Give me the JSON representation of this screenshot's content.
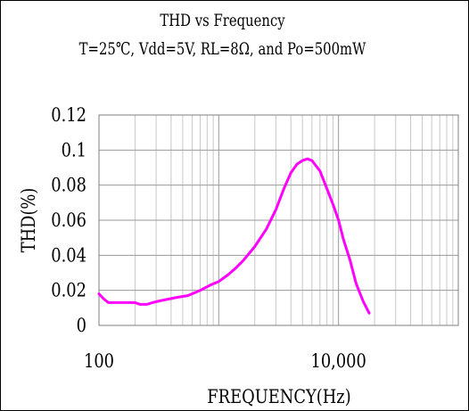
{
  "chart_data": {
    "type": "line",
    "title": "THD vs Frequency",
    "subtitle": "T=25℃, Vdd=5V, RL=8Ω, and Po=500mW",
    "xlabel": "FREQUENCY(Hz)",
    "ylabel": "THD(%)",
    "x_scale": "log",
    "xlim": [
      100,
      100000
    ],
    "ylim": [
      0,
      0.12
    ],
    "x_tick_labels": [
      {
        "value": 100,
        "label": "100"
      },
      {
        "value": 10000,
        "label": "10,000"
      }
    ],
    "y_ticks": [
      0,
      0.02,
      0.04,
      0.06,
      0.08,
      0.1,
      0.12
    ],
    "y_tick_labels": [
      "0",
      "0.02",
      "0.04",
      "0.06",
      "0.08",
      "0.1",
      "0.12"
    ],
    "grid": true,
    "series": [
      {
        "color": "#ff00ff",
        "x": [
          100,
          110,
          120,
          140,
          170,
          200,
          220,
          250,
          280,
          320,
          380,
          450,
          550,
          700,
          850,
          1000,
          1200,
          1400,
          1600,
          2000,
          2500,
          3000,
          3500,
          4000,
          4500,
          5000,
          5500,
          6000,
          7000,
          8000,
          9000,
          10000,
          11000,
          12500,
          14000,
          16000,
          18000
        ],
        "y": [
          0.018,
          0.015,
          0.013,
          0.013,
          0.013,
          0.013,
          0.012,
          0.012,
          0.013,
          0.014,
          0.015,
          0.016,
          0.017,
          0.02,
          0.023,
          0.025,
          0.029,
          0.033,
          0.037,
          0.045,
          0.055,
          0.066,
          0.078,
          0.087,
          0.092,
          0.094,
          0.095,
          0.094,
          0.088,
          0.078,
          0.069,
          0.06,
          0.049,
          0.037,
          0.024,
          0.014,
          0.007
        ]
      }
    ]
  }
}
